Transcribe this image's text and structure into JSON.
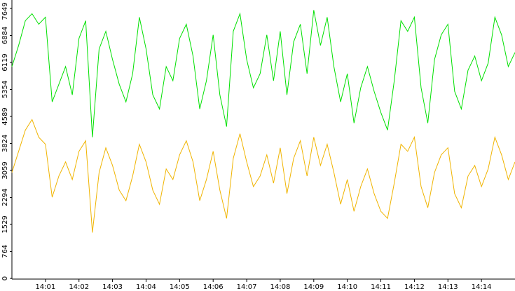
{
  "chart_data": {
    "type": "line",
    "x": [
      840,
      840.2,
      840.4,
      840.6,
      840.8,
      841,
      841.2,
      841.4,
      841.6,
      841.8,
      842,
      842.2,
      842.4,
      842.6,
      842.8,
      843,
      843.2,
      843.4,
      843.6,
      843.8,
      844,
      844.2,
      844.4,
      844.6,
      844.8,
      845,
      845.2,
      845.4,
      845.6,
      845.8,
      846,
      846.2,
      846.4,
      846.6,
      846.8,
      847,
      847.2,
      847.4,
      847.6,
      847.8,
      848,
      848.2,
      848.4,
      848.6,
      848.8,
      849,
      849.2,
      849.4,
      849.6,
      849.8,
      850,
      850.2,
      850.4,
      850.6,
      850.8,
      851,
      851.2,
      851.4,
      851.6,
      851.8,
      852,
      852.2,
      852.4,
      852.6,
      852.8,
      853,
      853.2,
      853.4,
      853.6,
      853.8,
      854,
      854.2,
      854.4,
      854.6,
      854.8,
      855
    ],
    "series": [
      {
        "color": "#00e000",
        "values": [
          6000,
          6600,
          7300,
          7500,
          7200,
          7400,
          5000,
          5500,
          6000,
          5200,
          6800,
          7300,
          4000,
          6500,
          7000,
          6200,
          5500,
          5000,
          5800,
          7400,
          6500,
          5200,
          4800,
          6000,
          5600,
          6800,
          7200,
          6300,
          4800,
          5600,
          6900,
          5200,
          4300,
          7000,
          7500,
          6200,
          5400,
          5800,
          6900,
          5600,
          7000,
          5200,
          6700,
          7200,
          5800,
          7600,
          6600,
          7400,
          6000,
          5000,
          5800,
          4400,
          5400,
          6000,
          5300,
          4700,
          4200,
          5600,
          7300,
          7000,
          7400,
          5400,
          4400,
          6200,
          6900,
          7200,
          5300,
          4800,
          5900,
          6300,
          5600,
          6100,
          7400,
          6900,
          6000,
          6400
        ]
      },
      {
        "color": "#f0b400",
        "values": [
          3000,
          3600,
          4200,
          4500,
          4000,
          3800,
          2300,
          2900,
          3300,
          2800,
          3600,
          3900,
          1300,
          3000,
          3700,
          3200,
          2500,
          2200,
          2900,
          3800,
          3300,
          2500,
          2100,
          3100,
          2800,
          3500,
          3900,
          3300,
          2200,
          2800,
          3600,
          2500,
          1700,
          3400,
          4100,
          3300,
          2600,
          2900,
          3500,
          2700,
          3700,
          2400,
          3400,
          3900,
          2900,
          4000,
          3200,
          3800,
          3000,
          2100,
          2800,
          1900,
          2600,
          3100,
          2400,
          1900,
          1700,
          2700,
          3800,
          3600,
          4000,
          2600,
          2000,
          3000,
          3500,
          3700,
          2400,
          2000,
          2900,
          3200,
          2600,
          3100,
          4000,
          3500,
          2800,
          3300
        ]
      }
    ],
    "xlim": [
      840,
      855
    ],
    "xticks": [
      {
        "value": 841,
        "label": "14:01"
      },
      {
        "value": 842,
        "label": "14:02"
      },
      {
        "value": 843,
        "label": "14:03"
      },
      {
        "value": 844,
        "label": "14:04"
      },
      {
        "value": 845,
        "label": "14:05"
      },
      {
        "value": 846,
        "label": "14:06"
      },
      {
        "value": 847,
        "label": "14:07"
      },
      {
        "value": 848,
        "label": "14:08"
      },
      {
        "value": 849,
        "label": "14:09"
      },
      {
        "value": 850,
        "label": "14:10"
      },
      {
        "value": 851,
        "label": "14:11"
      },
      {
        "value": 852,
        "label": "14:12"
      },
      {
        "value": 853,
        "label": "14:13"
      },
      {
        "value": 854,
        "label": "14:14"
      }
    ],
    "ylim": [
      0,
      7649
    ],
    "yticks": [
      0,
      764,
      1529,
      2294,
      3059,
      3824,
      4589,
      5354,
      6119,
      6884,
      7649
    ]
  }
}
